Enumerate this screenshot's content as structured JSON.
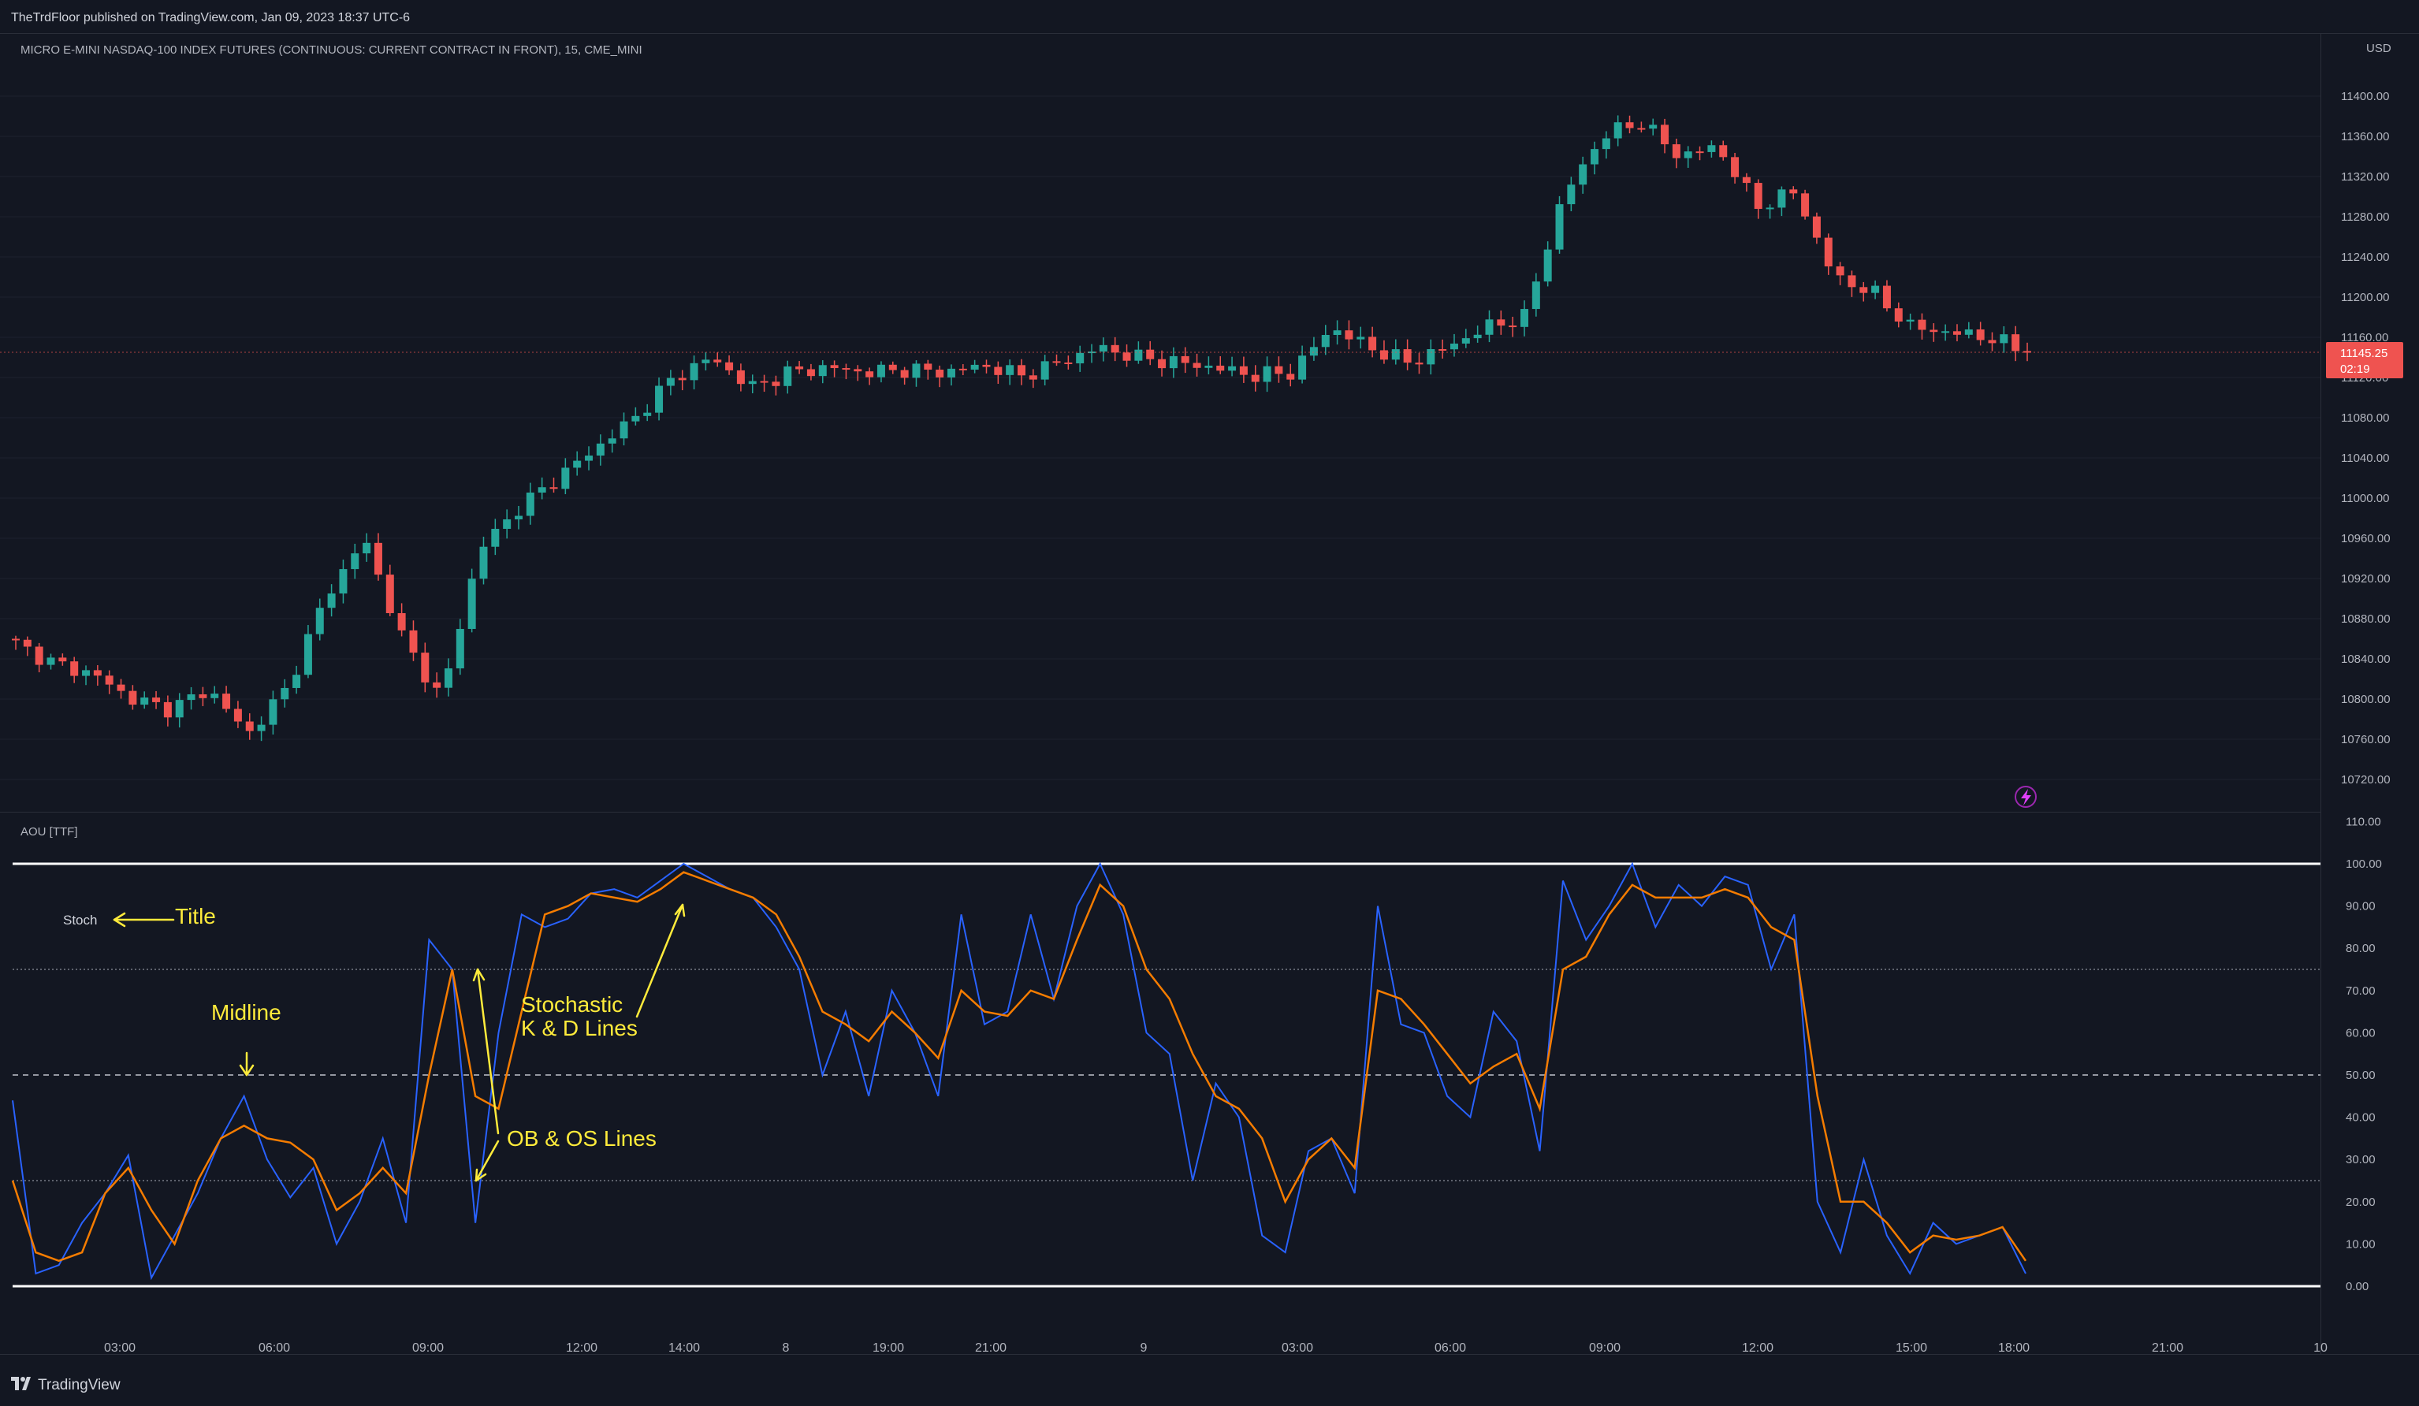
{
  "header": {
    "published": "TheTrdFloor published on TradingView.com, Jan 09, 2023 18:37 UTC-6",
    "symbol": "MICRO E-MINI NASDAQ-100 INDEX FUTURES (CONTINUOUS: CURRENT CONTRACT IN FRONT), 15, CME_MINI"
  },
  "price_pane": {
    "currency": "USD",
    "price_ticks": [
      "11400.00",
      "11360.00",
      "11320.00",
      "11280.00",
      "11240.00",
      "11200.00",
      "11160.00",
      "11120.00",
      "11080.00",
      "11040.00",
      "11000.00",
      "10960.00",
      "10920.00",
      "10880.00",
      "10840.00",
      "10800.00",
      "10760.00",
      "10720.00"
    ],
    "last_price": "11145.25",
    "countdown": "02:19",
    "lightning_icon": "lightning-icon"
  },
  "indicator_pane": {
    "label": "AOU [TTF]",
    "ticks": [
      "110.00",
      "100.00",
      "90.00",
      "80.00",
      "70.00",
      "60.00",
      "50.00",
      "40.00",
      "30.00",
      "20.00",
      "10.00",
      "0.00"
    ],
    "annotations": {
      "stoch": "Stoch",
      "title": "Title",
      "midline": "Midline",
      "stochastic_line1": "Stochastic",
      "stochastic_line2": "K & D Lines",
      "ob_os": "OB & OS Lines"
    }
  },
  "time_axis": [
    "03:00",
    "06:00",
    "09:00",
    "12:00",
    "14:00",
    "8",
    "19:00",
    "21:00",
    "9",
    "03:00",
    "06:00",
    "09:00",
    "12:00",
    "15:00",
    "18:00",
    "21:00",
    "10"
  ],
  "footer": {
    "brand": "TradingView"
  },
  "colors": {
    "background": "#131722",
    "up": "#26a69a",
    "down": "#ef5350",
    "k_line": "#2962ff",
    "d_line": "#f57c00",
    "annotation": "#ffeb3b",
    "grid": "#1e222d"
  },
  "chart_data": [
    {
      "type": "candlestick",
      "title": "MICRO E-MINI NASDAQ-100 INDEX FUTURES (CONTINUOUS: CURRENT CONTRACT IN FRONT), 15, CME_MINI",
      "ylabel": "USD",
      "ylim": [
        10700,
        11420
      ],
      "last_price": 11145.25,
      "key_prices": [
        10855,
        10835,
        10825,
        10800,
        10790,
        10810,
        10765,
        10810,
        10900,
        10960,
        10860,
        10800,
        10950,
        10990,
        11020,
        11050,
        11080,
        11120,
        11140,
        11110,
        11125,
        11130,
        11125,
        11128,
        11125,
        11132,
        11122,
        11135,
        11150,
        11140,
        11135,
        11130,
        11122,
        11125,
        11170,
        11150,
        11135,
        11150,
        11170,
        11180,
        11300,
        11360,
        11375,
        11340,
        11350,
        11290,
        11305,
        11220,
        11205,
        11170,
        11165,
        11160,
        11145
      ]
    },
    {
      "type": "line",
      "title": "AOU [TTF]",
      "ylim": [
        0,
        110
      ],
      "reference_lines": [
        {
          "name": "upper bound",
          "value": 100
        },
        {
          "name": "overbought",
          "value": 75
        },
        {
          "name": "midline",
          "value": 50
        },
        {
          "name": "oversold",
          "value": 25
        },
        {
          "name": "lower bound",
          "value": 0
        }
      ],
      "series": [
        {
          "name": "",
          "color": "#2962ff",
          "values": [
            44,
            3,
            5,
            15,
            22,
            31,
            2,
            12,
            22,
            35,
            45,
            30,
            21,
            28,
            10,
            20,
            35,
            15,
            82,
            75,
            15,
            60,
            88,
            85,
            87,
            93,
            94,
            92,
            96,
            100,
            97,
            94,
            92,
            85,
            75,
            50,
            65,
            45,
            70,
            60,
            45,
            88,
            62,
            65,
            88,
            68,
            90,
            100,
            88,
            60,
            55,
            25,
            48,
            40,
            12,
            8,
            32,
            35,
            22,
            90,
            62,
            60,
            45,
            40,
            65,
            58,
            32,
            96,
            82,
            90,
            100,
            85,
            95,
            90,
            97,
            95,
            75,
            88,
            20,
            8,
            30,
            12,
            3,
            15,
            10,
            12,
            14,
            3
          ]
        },
        {
          "name": "",
          "color": "#f57c00",
          "values": [
            25,
            8,
            6,
            8,
            22,
            28,
            18,
            10,
            25,
            35,
            38,
            35,
            34,
            30,
            18,
            22,
            28,
            22,
            50,
            75,
            45,
            42,
            65,
            88,
            90,
            93,
            92,
            91,
            94,
            98,
            96,
            94,
            92,
            88,
            78,
            65,
            62,
            58,
            65,
            60,
            54,
            70,
            65,
            64,
            70,
            68,
            82,
            95,
            90,
            75,
            68,
            55,
            45,
            42,
            35,
            20,
            30,
            35,
            28,
            70,
            68,
            62,
            55,
            48,
            52,
            55,
            42,
            75,
            78,
            88,
            95,
            92,
            92,
            92,
            94,
            92,
            85,
            82,
            45,
            20,
            20,
            15,
            8,
            12,
            11,
            12,
            14,
            6
          ]
        }
      ]
    }
  ]
}
